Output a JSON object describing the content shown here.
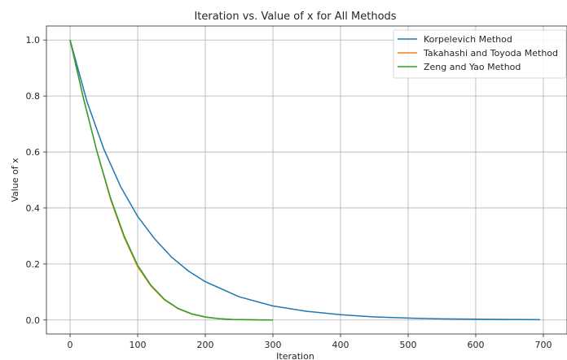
{
  "chart_data": {
    "type": "line",
    "title": "Iteration vs. Value of x for All Methods",
    "xlabel": "Iteration",
    "ylabel": "Value of x",
    "xlim": [
      -35,
      735
    ],
    "ylim": [
      -0.05,
      1.05
    ],
    "xticks": [
      0,
      100,
      200,
      300,
      400,
      500,
      600,
      700
    ],
    "yticks": [
      0.0,
      0.2,
      0.4,
      0.6,
      0.8,
      1.0
    ],
    "ytick_labels": [
      "0.0",
      "0.2",
      "0.4",
      "0.6",
      "0.8",
      "1.0"
    ],
    "grid": true,
    "legend_position": "top-right",
    "series": [
      {
        "name": "Korpelevich Method",
        "color": "#1f77b4",
        "x": [
          0,
          25,
          50,
          75,
          100,
          125,
          150,
          175,
          200,
          250,
          300,
          350,
          400,
          450,
          500,
          550,
          600,
          650,
          695
        ],
        "values": [
          1.0,
          0.78,
          0.61,
          0.475,
          0.37,
          0.29,
          0.225,
          0.175,
          0.137,
          0.083,
          0.05,
          0.031,
          0.019,
          0.011,
          0.007,
          0.004,
          0.003,
          0.002,
          0.001
        ]
      },
      {
        "name": "Takahashi and Toyoda Method",
        "color": "#ff7f0e",
        "x": [
          0,
          20,
          40,
          60,
          80,
          100,
          120,
          140,
          160,
          180,
          200,
          220,
          240,
          260,
          280,
          300
        ],
        "values": [
          1.0,
          0.79,
          0.6,
          0.43,
          0.295,
          0.19,
          0.12,
          0.071,
          0.04,
          0.021,
          0.01,
          0.005,
          0.002,
          0.001,
          0.0005,
          0.0
        ]
      },
      {
        "name": "Zeng and Yao Method",
        "color": "#2ca02c",
        "x": [
          0,
          20,
          40,
          60,
          80,
          100,
          120,
          140,
          160,
          180,
          200,
          220,
          240,
          260,
          280,
          300
        ],
        "values": [
          1.0,
          0.79,
          0.6,
          0.435,
          0.3,
          0.195,
          0.123,
          0.073,
          0.041,
          0.022,
          0.011,
          0.005,
          0.002,
          0.001,
          0.0005,
          0.0
        ]
      }
    ]
  }
}
